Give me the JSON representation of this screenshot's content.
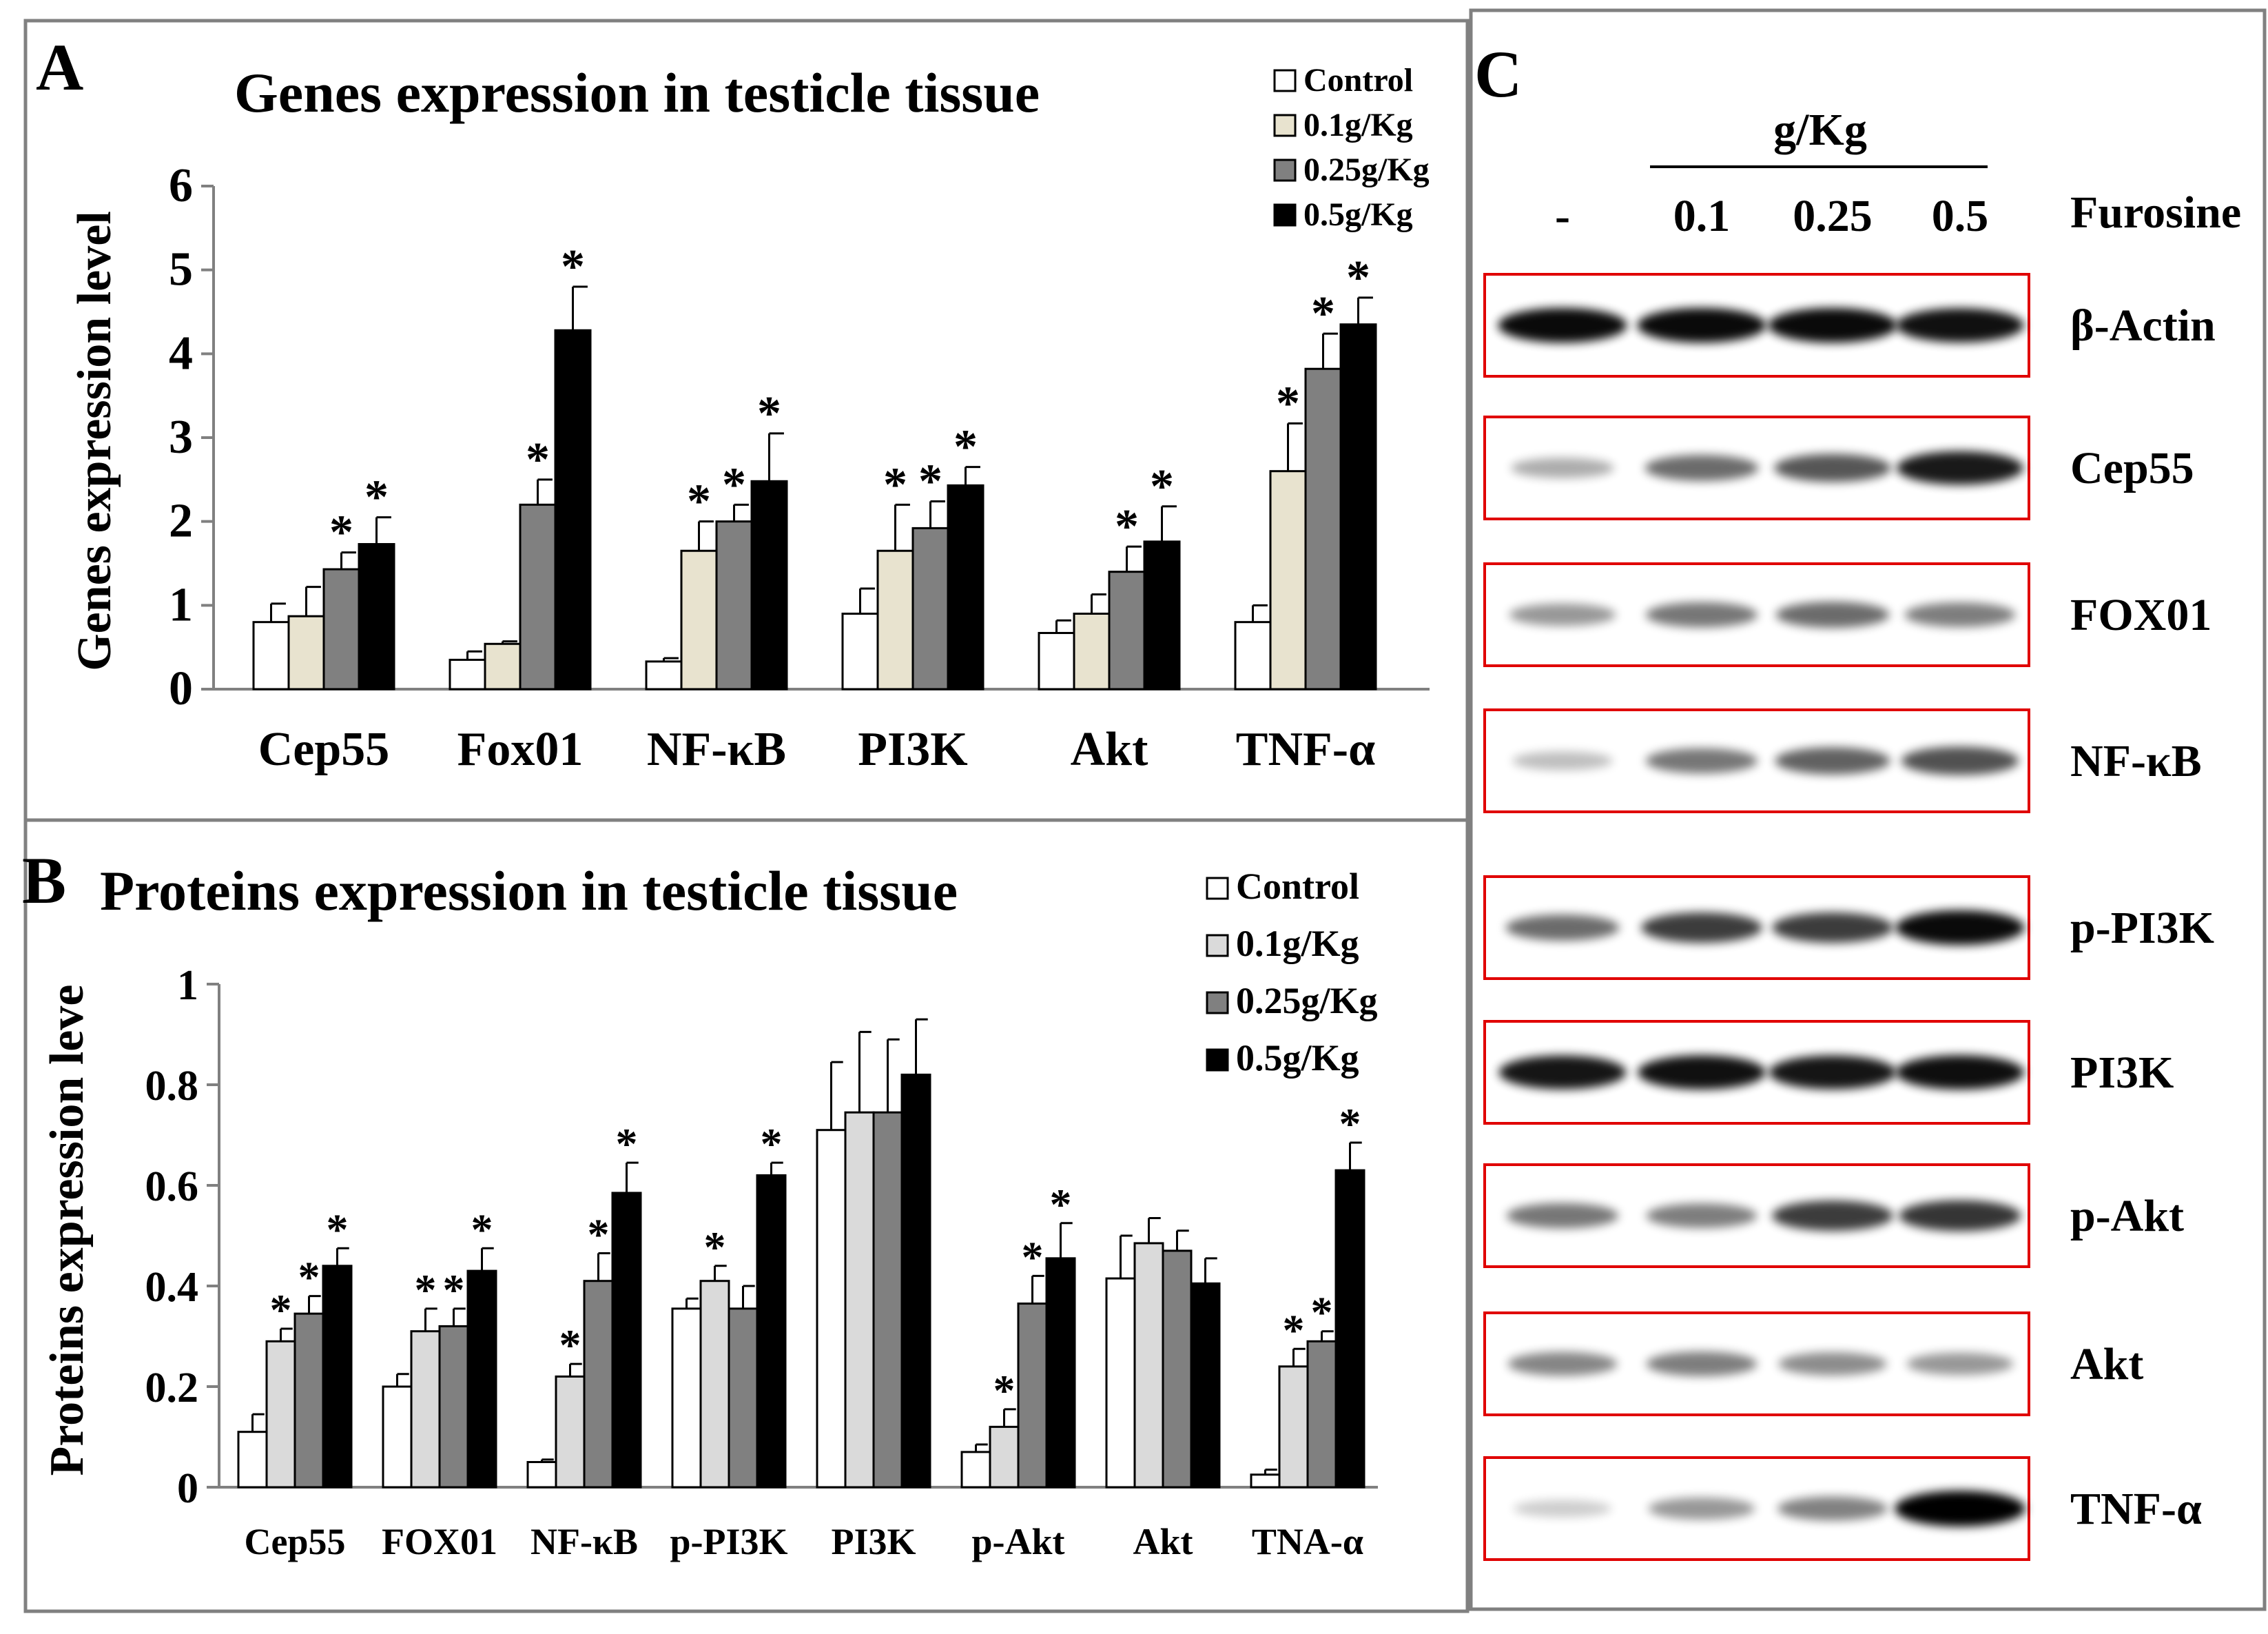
{
  "colors": {
    "control": "#ffffff",
    "dose_01": "#e8e3cf",
    "dose_01_b": "#dadada",
    "dose_025": "#808080",
    "dose_05": "#000000",
    "frame": "#808080",
    "blot_box": "#e00000"
  },
  "chart_data": [
    {
      "panel_label": "A",
      "type": "bar",
      "title": "Genes expression in testicle tissue",
      "xlabel": "",
      "ylabel": "Genes expression level",
      "ylim": [
        0,
        6
      ],
      "yticks": [
        "0",
        "1",
        "2",
        "3",
        "4",
        "5",
        "6"
      ],
      "categories": [
        "Cep55",
        "Fox01",
        "NF-κB",
        "PI3K",
        "Akt",
        "TNF-α"
      ],
      "series": [
        {
          "name": "Control",
          "values": [
            0.8,
            0.35,
            0.33,
            0.9,
            0.67,
            0.8
          ],
          "errors": [
            0.22,
            0.1,
            0.04,
            0.3,
            0.15,
            0.2
          ],
          "stars": [
            false,
            false,
            false,
            false,
            false,
            false
          ]
        },
        {
          "name": "0.1g/Kg",
          "values": [
            0.87,
            0.54,
            1.65,
            1.65,
            0.9,
            2.6
          ],
          "errors": [
            0.35,
            0.03,
            0.35,
            0.55,
            0.23,
            0.57
          ],
          "stars": [
            false,
            false,
            true,
            true,
            false,
            true
          ]
        },
        {
          "name": "0.25g/Kg",
          "values": [
            1.43,
            2.2,
            2.0,
            1.92,
            1.4,
            3.82
          ],
          "errors": [
            0.2,
            0.3,
            0.2,
            0.32,
            0.3,
            0.42
          ],
          "stars": [
            true,
            true,
            true,
            true,
            true,
            true
          ]
        },
        {
          "name": "0.5g/Kg",
          "values": [
            1.73,
            4.28,
            2.48,
            2.43,
            1.76,
            4.35
          ],
          "errors": [
            0.32,
            0.52,
            0.57,
            0.22,
            0.42,
            0.32
          ],
          "stars": [
            true,
            true,
            true,
            true,
            true,
            true
          ]
        }
      ],
      "legend": "top-right"
    },
    {
      "panel_label": "B",
      "type": "bar",
      "title": "Proteins expression in testicle tissue",
      "xlabel": "",
      "ylabel": "Proteins expression leve",
      "ylim": [
        0,
        1
      ],
      "yticks": [
        "0",
        "0.2",
        "0.4",
        "0.6",
        "0.8",
        "1"
      ],
      "categories": [
        "Cep55",
        "FOX01",
        "NF-κB",
        "p-PI3K",
        "PI3K",
        "p-Akt",
        "Akt",
        "TNA-α"
      ],
      "series": [
        {
          "name": "Control",
          "values": [
            0.11,
            0.2,
            0.05,
            0.355,
            0.71,
            0.07,
            0.415,
            0.025
          ],
          "errors": [
            0.035,
            0.025,
            0.005,
            0.02,
            0.135,
            0.015,
            0.085,
            0.01
          ],
          "stars": [
            false,
            false,
            false,
            false,
            false,
            false,
            false,
            false
          ]
        },
        {
          "name": "0.1g/Kg",
          "values": [
            0.29,
            0.31,
            0.22,
            0.41,
            0.745,
            0.12,
            0.485,
            0.24
          ],
          "errors": [
            0.025,
            0.045,
            0.025,
            0.03,
            0.16,
            0.035,
            0.05,
            0.035
          ],
          "stars": [
            true,
            true,
            true,
            true,
            false,
            true,
            false,
            true
          ]
        },
        {
          "name": "0.25g/Kg",
          "values": [
            0.345,
            0.32,
            0.41,
            0.355,
            0.745,
            0.365,
            0.47,
            0.29
          ],
          "errors": [
            0.035,
            0.035,
            0.055,
            0.045,
            0.145,
            0.055,
            0.04,
            0.02
          ],
          "stars": [
            true,
            true,
            true,
            false,
            false,
            true,
            false,
            true
          ]
        },
        {
          "name": "0.5g/Kg",
          "values": [
            0.44,
            0.43,
            0.585,
            0.62,
            0.82,
            0.455,
            0.405,
            0.63
          ],
          "errors": [
            0.035,
            0.045,
            0.06,
            0.025,
            0.11,
            0.07,
            0.05,
            0.055
          ],
          "stars": [
            true,
            true,
            true,
            true,
            false,
            true,
            false,
            true
          ]
        }
      ],
      "legend": "top-right"
    }
  ],
  "panel_c": {
    "label": "C",
    "dose_header": "g/Kg",
    "lanes": [
      "-",
      "0.1",
      "0.25",
      "0.5"
    ],
    "treatment_label": "Furosine",
    "proteins": [
      {
        "name": "β-Actin",
        "intensities": [
          0.95,
          0.95,
          0.95,
          0.92
        ]
      },
      {
        "name": "Cep55",
        "intensities": [
          0.2,
          0.5,
          0.6,
          0.88
        ]
      },
      {
        "name": "FOX01",
        "intensities": [
          0.3,
          0.45,
          0.5,
          0.42
        ]
      },
      {
        "name": "NF-κB",
        "intensities": [
          0.12,
          0.45,
          0.55,
          0.62
        ]
      },
      {
        "name": "p-PI3K",
        "intensities": [
          0.5,
          0.72,
          0.72,
          0.95
        ]
      },
      {
        "name": "PI3K",
        "intensities": [
          0.9,
          0.92,
          0.9,
          0.93
        ]
      },
      {
        "name": "p-Akt",
        "intensities": [
          0.45,
          0.42,
          0.72,
          0.75
        ]
      },
      {
        "name": "Akt",
        "intensities": [
          0.38,
          0.42,
          0.35,
          0.3
        ]
      },
      {
        "name": "TNF-α",
        "intensities": [
          0.05,
          0.3,
          0.4,
          1.0
        ]
      }
    ]
  }
}
